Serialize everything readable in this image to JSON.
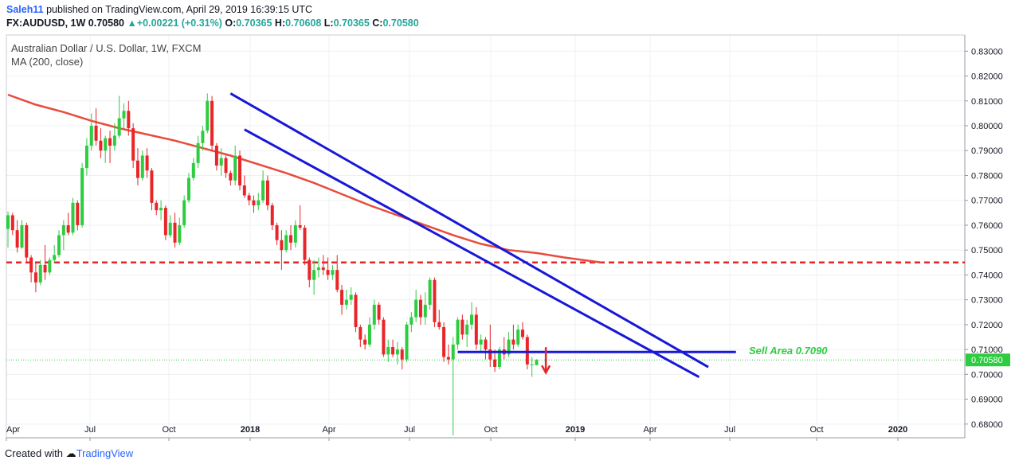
{
  "header": {
    "author": "Saleh11",
    "published_text": "published on TradingView.com, April 29, 2019 16:39:15 UTC",
    "symbol": "FX:AUDUSD, 1W",
    "last": "0.70580",
    "change": "+0.00221 (+0.31%)",
    "open_label": "O:",
    "open": "0.70365",
    "high_label": "H:",
    "high": "0.70608",
    "low_label": "L:",
    "low": "0.70365",
    "close_label": "C:",
    "close": "0.70580"
  },
  "legend": {
    "instrument": "Australian Dollar / U.S. Dollar, 1W, FXCM",
    "indicator": "MA (200, close)"
  },
  "footer": {
    "created_with": "Created with",
    "brand": "TradingView"
  },
  "colors": {
    "up": "#26a69a",
    "up_body": "#2ecc40",
    "down": "#e8262a",
    "ma": "#e74c3c",
    "trend": "#1818d6",
    "sell_text": "#2ecc40",
    "grid": "#eef0f3",
    "axis_text": "#131722",
    "price_tag": "#2ecc40"
  },
  "chart_data": {
    "type": "candlestick",
    "title": "Australian Dollar / U.S. Dollar, 1W, FXCM",
    "ylim": [
      0.6745,
      0.8365
    ],
    "y_ticks": [
      "0.68000",
      "0.69000",
      "0.70000",
      "0.71000",
      "0.72000",
      "0.73000",
      "0.74000",
      "0.75000",
      "0.76000",
      "0.77000",
      "0.78000",
      "0.79000",
      "0.80000",
      "0.81000",
      "0.82000",
      "0.83000"
    ],
    "x_ticks": [
      {
        "label": "Apr",
        "bold": false
      },
      {
        "label": "Jul",
        "bold": false
      },
      {
        "label": "Oct",
        "bold": false
      },
      {
        "label": "2018",
        "bold": true
      },
      {
        "label": "Apr",
        "bold": false
      },
      {
        "label": "Jul",
        "bold": false
      },
      {
        "label": "Oct",
        "bold": false
      },
      {
        "label": "2019",
        "bold": true
      },
      {
        "label": "Apr",
        "bold": false
      },
      {
        "label": "Jul",
        "bold": false
      },
      {
        "label": "Oct",
        "bold": false
      },
      {
        "label": "2020",
        "bold": true
      }
    ],
    "current_price": "0.70580",
    "annotation": {
      "text": "Sell Area 0.7090"
    },
    "ma_200": [
      [
        0,
        0.8125
      ],
      [
        6,
        0.8085
      ],
      [
        12,
        0.8055
      ],
      [
        18,
        0.802
      ],
      [
        24,
        0.799
      ],
      [
        30,
        0.7965
      ],
      [
        36,
        0.794
      ],
      [
        42,
        0.791
      ],
      [
        48,
        0.788
      ],
      [
        54,
        0.7845
      ],
      [
        60,
        0.781
      ],
      [
        66,
        0.777
      ],
      [
        72,
        0.7725
      ],
      [
        78,
        0.768
      ],
      [
        84,
        0.764
      ],
      [
        90,
        0.76
      ],
      [
        96,
        0.756
      ],
      [
        102,
        0.7525
      ],
      [
        108,
        0.75
      ],
      [
        114,
        0.7488
      ],
      [
        120,
        0.747
      ],
      [
        126,
        0.7455
      ],
      [
        128,
        0.745
      ]
    ],
    "resistance_level": 0.745,
    "support_level": 0.709,
    "trendlines": [
      {
        "from": [
          48,
          0.813
        ],
        "to": [
          133,
          0.7055
        ]
      },
      {
        "from": [
          51,
          0.7985
        ],
        "to": [
          131,
          0.7015
        ]
      }
    ],
    "candles": [
      [
        0.7585,
        0.7655,
        0.751,
        0.764
      ],
      [
        0.764,
        0.765,
        0.756,
        0.758
      ],
      [
        0.758,
        0.762,
        0.749,
        0.751
      ],
      [
        0.751,
        0.762,
        0.7505,
        0.76
      ],
      [
        0.76,
        0.761,
        0.745,
        0.747
      ],
      [
        0.747,
        0.748,
        0.737,
        0.741
      ],
      [
        0.741,
        0.745,
        0.733,
        0.737
      ],
      [
        0.737,
        0.746,
        0.736,
        0.744
      ],
      [
        0.744,
        0.752,
        0.738,
        0.741
      ],
      [
        0.741,
        0.747,
        0.74,
        0.746
      ],
      [
        0.746,
        0.752,
        0.745,
        0.748
      ],
      [
        0.748,
        0.758,
        0.747,
        0.756
      ],
      [
        0.756,
        0.762,
        0.75,
        0.76
      ],
      [
        0.76,
        0.765,
        0.756,
        0.757
      ],
      [
        0.757,
        0.771,
        0.756,
        0.769
      ],
      [
        0.769,
        0.77,
        0.758,
        0.76
      ],
      [
        0.76,
        0.785,
        0.759,
        0.783
      ],
      [
        0.783,
        0.795,
        0.78,
        0.792
      ],
      [
        0.792,
        0.805,
        0.79,
        0.8
      ],
      [
        0.8,
        0.807,
        0.792,
        0.794
      ],
      [
        0.794,
        0.799,
        0.787,
        0.79
      ],
      [
        0.79,
        0.796,
        0.785,
        0.795
      ],
      [
        0.795,
        0.798,
        0.785,
        0.792
      ],
      [
        0.792,
        0.801,
        0.79,
        0.796
      ],
      [
        0.796,
        0.812,
        0.795,
        0.803
      ],
      [
        0.803,
        0.809,
        0.799,
        0.806
      ],
      [
        0.806,
        0.81,
        0.796,
        0.799
      ],
      [
        0.799,
        0.801,
        0.783,
        0.786
      ],
      [
        0.786,
        0.791,
        0.776,
        0.779
      ],
      [
        0.779,
        0.79,
        0.778,
        0.788
      ],
      [
        0.788,
        0.791,
        0.779,
        0.782
      ],
      [
        0.782,
        0.783,
        0.766,
        0.769
      ],
      [
        0.769,
        0.77,
        0.764,
        0.766
      ],
      [
        0.766,
        0.77,
        0.762,
        0.767
      ],
      [
        0.767,
        0.768,
        0.754,
        0.756
      ],
      [
        0.756,
        0.764,
        0.755,
        0.761
      ],
      [
        0.761,
        0.765,
        0.751,
        0.753
      ],
      [
        0.753,
        0.763,
        0.752,
        0.76
      ],
      [
        0.76,
        0.772,
        0.759,
        0.77
      ],
      [
        0.77,
        0.781,
        0.769,
        0.779
      ],
      [
        0.779,
        0.787,
        0.778,
        0.785
      ],
      [
        0.785,
        0.796,
        0.783,
        0.793
      ],
      [
        0.793,
        0.8,
        0.79,
        0.798
      ],
      [
        0.798,
        0.813,
        0.797,
        0.81
      ],
      [
        0.81,
        0.812,
        0.79,
        0.792
      ],
      [
        0.792,
        0.793,
        0.782,
        0.784
      ],
      [
        0.784,
        0.791,
        0.78,
        0.787
      ],
      [
        0.787,
        0.788,
        0.779,
        0.781
      ],
      [
        0.781,
        0.782,
        0.776,
        0.778
      ],
      [
        0.778,
        0.792,
        0.776,
        0.788
      ],
      [
        0.788,
        0.79,
        0.774,
        0.776
      ],
      [
        0.776,
        0.78,
        0.771,
        0.772
      ],
      [
        0.772,
        0.773,
        0.768,
        0.77
      ],
      [
        0.77,
        0.772,
        0.765,
        0.768
      ],
      [
        0.768,
        0.773,
        0.766,
        0.77
      ],
      [
        0.77,
        0.782,
        0.769,
        0.778
      ],
      [
        0.778,
        0.78,
        0.766,
        0.768
      ],
      [
        0.768,
        0.769,
        0.758,
        0.76
      ],
      [
        0.76,
        0.761,
        0.752,
        0.754
      ],
      [
        0.754,
        0.758,
        0.742,
        0.75
      ],
      [
        0.75,
        0.758,
        0.749,
        0.756
      ],
      [
        0.756,
        0.76,
        0.75,
        0.753
      ],
      [
        0.753,
        0.762,
        0.751,
        0.76
      ],
      [
        0.76,
        0.768,
        0.758,
        0.759
      ],
      [
        0.759,
        0.76,
        0.744,
        0.746
      ],
      [
        0.746,
        0.747,
        0.735,
        0.738
      ],
      [
        0.738,
        0.746,
        0.732,
        0.742
      ],
      [
        0.742,
        0.747,
        0.739,
        0.743
      ],
      [
        0.743,
        0.748,
        0.74,
        0.742
      ],
      [
        0.742,
        0.747,
        0.738,
        0.74
      ],
      [
        0.74,
        0.744,
        0.738,
        0.742
      ],
      [
        0.742,
        0.748,
        0.733,
        0.734
      ],
      [
        0.734,
        0.736,
        0.724,
        0.728
      ],
      [
        0.728,
        0.734,
        0.726,
        0.73
      ],
      [
        0.73,
        0.735,
        0.728,
        0.732
      ],
      [
        0.732,
        0.733,
        0.717,
        0.719
      ],
      [
        0.719,
        0.72,
        0.711,
        0.714
      ],
      [
        0.714,
        0.716,
        0.71,
        0.712
      ],
      [
        0.712,
        0.723,
        0.711,
        0.72
      ],
      [
        0.72,
        0.73,
        0.718,
        0.728
      ],
      [
        0.728,
        0.729,
        0.72,
        0.722
      ],
      [
        0.722,
        0.723,
        0.707,
        0.708
      ],
      [
        0.708,
        0.714,
        0.705,
        0.711
      ],
      [
        0.711,
        0.714,
        0.707,
        0.708
      ],
      [
        0.708,
        0.713,
        0.704,
        0.71
      ],
      [
        0.71,
        0.711,
        0.702,
        0.706
      ],
      [
        0.706,
        0.721,
        0.705,
        0.72
      ],
      [
        0.72,
        0.725,
        0.717,
        0.723
      ],
      [
        0.723,
        0.734,
        0.721,
        0.73
      ],
      [
        0.73,
        0.732,
        0.72,
        0.723
      ],
      [
        0.723,
        0.733,
        0.72,
        0.728
      ],
      [
        0.728,
        0.739,
        0.726,
        0.738
      ],
      [
        0.738,
        0.739,
        0.719,
        0.721
      ],
      [
        0.721,
        0.726,
        0.718,
        0.719
      ],
      [
        0.719,
        0.721,
        0.705,
        0.707
      ],
      [
        0.707,
        0.712,
        0.704,
        0.706
      ],
      [
        0.706,
        0.715,
        0.6755,
        0.712
      ],
      [
        0.712,
        0.723,
        0.71,
        0.722
      ],
      [
        0.722,
        0.724,
        0.714,
        0.716
      ],
      [
        0.716,
        0.722,
        0.711,
        0.72
      ],
      [
        0.72,
        0.729,
        0.718,
        0.724
      ],
      [
        0.724,
        0.727,
        0.71,
        0.712
      ],
      [
        0.712,
        0.716,
        0.709,
        0.714
      ],
      [
        0.714,
        0.715,
        0.706,
        0.71
      ],
      [
        0.71,
        0.72,
        0.703,
        0.706
      ],
      [
        0.706,
        0.71,
        0.701,
        0.703
      ],
      [
        0.703,
        0.711,
        0.702,
        0.71
      ],
      [
        0.71,
        0.715,
        0.706,
        0.708
      ],
      [
        0.708,
        0.717,
        0.707,
        0.714
      ],
      [
        0.714,
        0.72,
        0.71,
        0.712
      ],
      [
        0.712,
        0.72,
        0.711,
        0.718
      ],
      [
        0.718,
        0.721,
        0.714,
        0.715
      ],
      [
        0.715,
        0.716,
        0.702,
        0.704
      ],
      [
        0.704,
        0.707,
        0.699,
        0.704
      ],
      [
        0.7037,
        0.7061,
        0.7037,
        0.7058
      ]
    ]
  }
}
